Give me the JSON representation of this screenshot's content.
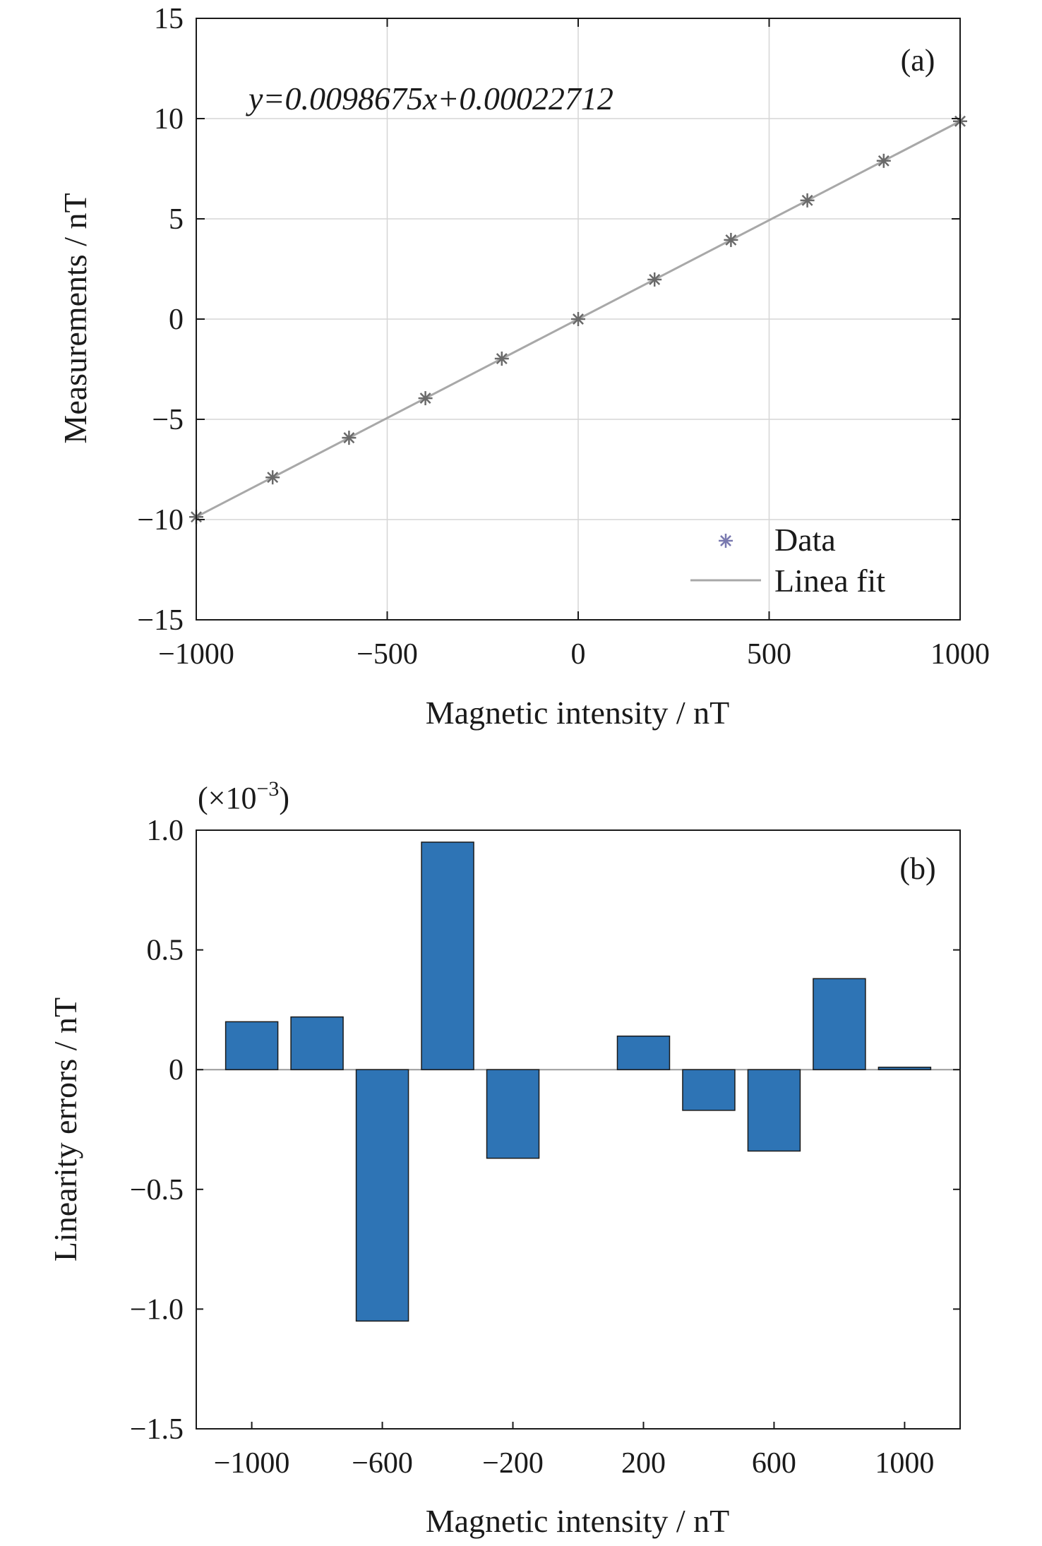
{
  "chart_data": [
    {
      "type": "scatter",
      "panel_label": "(a)",
      "equation": "y=0.0098675x+0.00022712",
      "xlabel": "Magnetic intensity / nT",
      "ylabel": "Measurements / nT",
      "xlim": [
        -1000,
        1000
      ],
      "ylim": [
        -15,
        15
      ],
      "xticks": [
        -1000,
        -500,
        0,
        500,
        1000
      ],
      "yticks": [
        -15,
        -10,
        -5,
        0,
        5,
        10,
        15
      ],
      "xtick_labels": [
        "−1000",
        "−500",
        "0",
        "500",
        "1000"
      ],
      "ytick_labels": [
        "−15",
        "−10",
        "−5",
        "0",
        "5",
        "10",
        "15"
      ],
      "grid": true,
      "legend_position": "bottom-right",
      "series": [
        {
          "name": "Data",
          "marker": "asterisk",
          "color": "#6a6a6a",
          "x": [
            -1000,
            -800,
            -600,
            -400,
            -200,
            0,
            200,
            400,
            600,
            800,
            1000
          ],
          "y": [
            -9.868,
            -7.894,
            -5.92,
            -3.946,
            -1.973,
            0.0,
            1.974,
            3.947,
            5.921,
            7.894,
            9.868
          ]
        },
        {
          "name": "Linea fit",
          "type": "line",
          "color": "#a8a8a8",
          "slope": 0.0098675,
          "intercept": 0.00022712
        }
      ]
    },
    {
      "type": "bar",
      "panel_label": "(b)",
      "multiplier_label": "(×10",
      "multiplier_exp": "−3",
      "multiplier_close": ")",
      "xlabel": "Magnetic intensity / nT",
      "ylabel": "Linearity errors / nT",
      "ylim": [
        -1.5,
        1.0
      ],
      "yticks": [
        -1.5,
        -1.0,
        -0.5,
        0,
        0.5,
        1.0
      ],
      "ytick_labels": [
        "−1.5",
        "−1.0",
        "−0.5",
        "0",
        "0.5",
        "1.0"
      ],
      "xticks": [
        -1000,
        -600,
        -200,
        200,
        600,
        1000
      ],
      "xtick_labels": [
        "−1000",
        "−600",
        "−200",
        "200",
        "600",
        "1000"
      ],
      "bar_color": "#2e74b5",
      "categories": [
        -1000,
        -800,
        -600,
        -400,
        -200,
        0,
        200,
        400,
        600,
        800,
        1000
      ],
      "values": [
        0.2,
        0.22,
        -1.05,
        0.95,
        -0.37,
        0.0,
        0.14,
        -0.17,
        -0.34,
        0.38,
        0.01
      ]
    }
  ]
}
